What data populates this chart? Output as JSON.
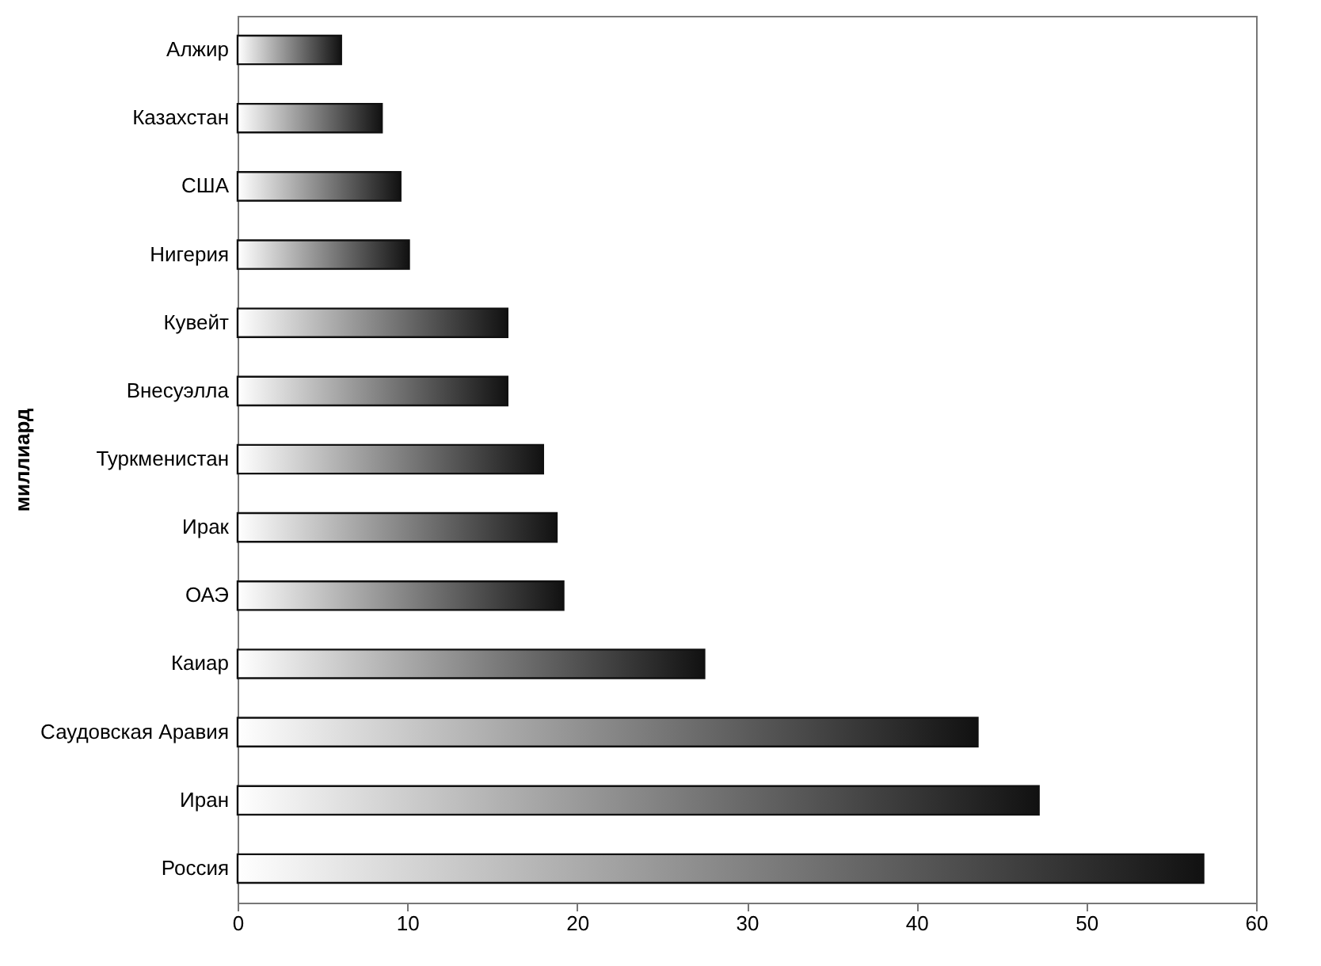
{
  "chart_data": {
    "type": "bar",
    "orientation": "horizontal",
    "ylabel": "миллиард",
    "categories": [
      "Алжир",
      "Казахстан",
      "США",
      "Нигерия",
      "Кувейт",
      "Внесуэлла",
      "Туркменистан",
      "Ирак",
      "ОАЭ",
      "Каиар",
      "Саудовская Аравия",
      "Иран",
      "Россия"
    ],
    "values": [
      6.1,
      8.5,
      9.6,
      10.1,
      15.9,
      15.9,
      18.0,
      18.8,
      19.2,
      27.5,
      43.6,
      47.2,
      56.9
    ],
    "color": "#111111",
    "xlim": [
      0,
      60
    ],
    "xticks": [
      0,
      10,
      20,
      30,
      40,
      50,
      60
    ],
    "grid": false
  }
}
